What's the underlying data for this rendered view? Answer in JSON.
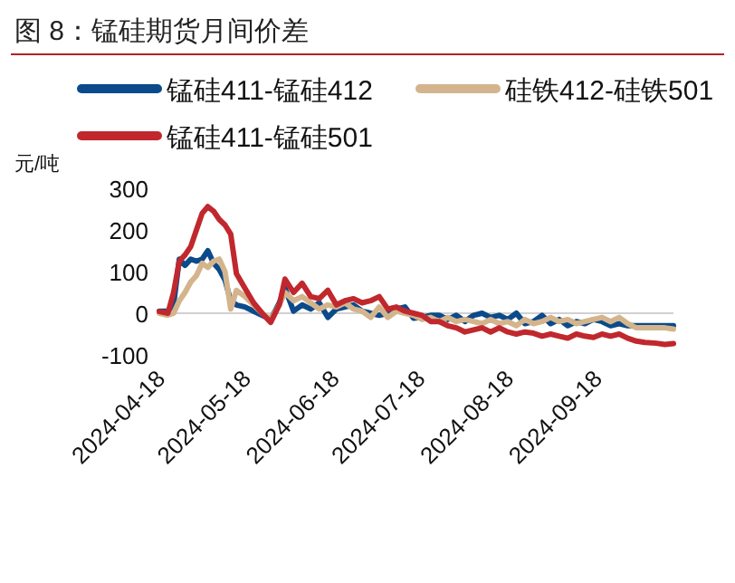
{
  "chart_data": {
    "type": "line",
    "title": "图 8：锰硅期货月间价差",
    "ylabel": "元/吨",
    "legend": "top",
    "x": [
      "2024-04-18",
      "2024-04-21",
      "2024-04-23",
      "2024-04-25",
      "2024-04-27",
      "2024-04-29",
      "2024-05-01",
      "2024-05-03",
      "2024-05-05",
      "2024-05-07",
      "2024-05-09",
      "2024-05-11",
      "2024-05-13",
      "2024-05-15",
      "2024-05-18",
      "2024-05-21",
      "2024-05-24",
      "2024-05-27",
      "2024-05-30",
      "2024-06-01",
      "2024-06-04",
      "2024-06-07",
      "2024-06-10",
      "2024-06-13",
      "2024-06-16",
      "2024-06-19",
      "2024-06-22",
      "2024-06-25",
      "2024-06-28",
      "2024-07-01",
      "2024-07-04",
      "2024-07-07",
      "2024-07-10",
      "2024-07-13",
      "2024-07-16",
      "2024-07-19",
      "2024-07-22",
      "2024-07-25",
      "2024-07-28",
      "2024-07-31",
      "2024-08-03",
      "2024-08-06",
      "2024-08-09",
      "2024-08-12",
      "2024-08-15",
      "2024-08-18",
      "2024-08-21",
      "2024-08-24",
      "2024-08-27",
      "2024-08-30",
      "2024-09-02",
      "2024-09-05",
      "2024-09-08",
      "2024-09-11",
      "2024-09-14",
      "2024-09-17",
      "2024-09-20",
      "2024-09-23",
      "2024-09-26",
      "2024-09-29",
      "2024-10-02",
      "2024-10-05",
      "2024-10-09",
      "2024-10-12",
      "2024-10-15"
    ],
    "series": [
      {
        "name": "锰硅411-锰硅412",
        "color": "#0b4a8b",
        "values": [
          5,
          5,
          20,
          130,
          115,
          130,
          125,
          130,
          150,
          120,
          105,
          80,
          30,
          20,
          15,
          5,
          -5,
          -15,
          25,
          60,
          5,
          20,
          10,
          25,
          -10,
          10,
          15,
          20,
          5,
          0,
          -5,
          0,
          10,
          15,
          -12,
          -10,
          -5,
          -5,
          -15,
          -5,
          -20,
          -5,
          0,
          -10,
          -5,
          -15,
          0,
          -25,
          -20,
          -5,
          -25,
          -15,
          -30,
          -20,
          -25,
          -15,
          -20,
          -30,
          -25,
          -30,
          -30,
          -30,
          -30,
          -30,
          -30
        ]
      },
      {
        "name": "硅铁412-硅铁501",
        "color": "#d4b48c",
        "values": [
          0,
          -5,
          0,
          30,
          50,
          75,
          90,
          120,
          110,
          125,
          130,
          100,
          10,
          55,
          40,
          20,
          0,
          -15,
          20,
          50,
          30,
          40,
          25,
          10,
          20,
          15,
          25,
          10,
          5,
          -10,
          15,
          -10,
          5,
          0,
          -5,
          -15,
          -10,
          -20,
          -10,
          -20,
          -15,
          -20,
          -25,
          -15,
          -25,
          -20,
          -30,
          -15,
          -25,
          -20,
          -10,
          -20,
          -15,
          -25,
          -20,
          -15,
          -10,
          -20,
          -10,
          -25,
          -35,
          -35,
          -35,
          -35,
          -38
        ]
      },
      {
        "name": "锰硅411-锰硅501",
        "color": "#c0282d",
        "values": [
          4,
          0,
          50,
          125,
          140,
          160,
          200,
          240,
          256,
          245,
          225,
          212,
          190,
          95,
          60,
          25,
          0,
          -22,
          20,
          82,
          50,
          72,
          40,
          35,
          55,
          20,
          30,
          35,
          25,
          30,
          40,
          10,
          15,
          5,
          0,
          -5,
          -20,
          -20,
          -30,
          -35,
          -45,
          -40,
          -35,
          -45,
          -35,
          -45,
          -50,
          -45,
          -48,
          -55,
          -50,
          -55,
          -60,
          -50,
          -55,
          -58,
          -50,
          -55,
          -50,
          -60,
          -67,
          -70,
          -72,
          -75,
          -73
        ]
      }
    ],
    "xlim": [
      "2024-04-18",
      "2024-10-15"
    ],
    "xticks": [
      "2024-04-18",
      "2024-05-18",
      "2024-06-18",
      "2024-07-18",
      "2024-08-18",
      "2024-09-18"
    ],
    "ylim": [
      -100,
      300
    ],
    "yticks": [
      -100,
      0,
      100,
      200,
      300
    ]
  }
}
